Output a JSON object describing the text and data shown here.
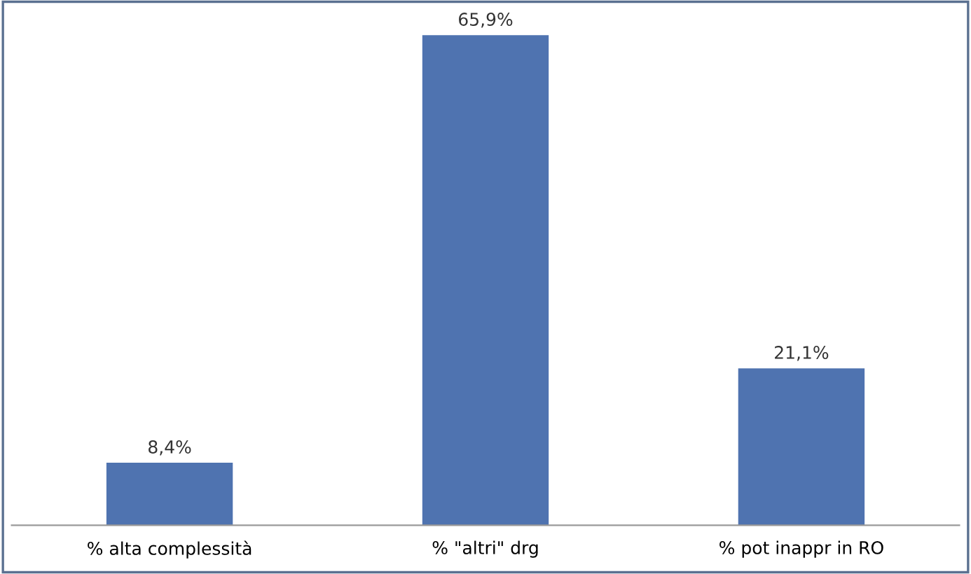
{
  "chart_data": {
    "type": "bar",
    "categories": [
      "% alta complessità",
      "% \"altri\" drg",
      "% pot inappr in RO"
    ],
    "values": [
      8.4,
      65.9,
      21.1
    ],
    "value_labels": [
      "8,4%",
      "65,9%",
      "21,1%"
    ],
    "color": "#4f73b0",
    "grid": false,
    "legend": false
  }
}
